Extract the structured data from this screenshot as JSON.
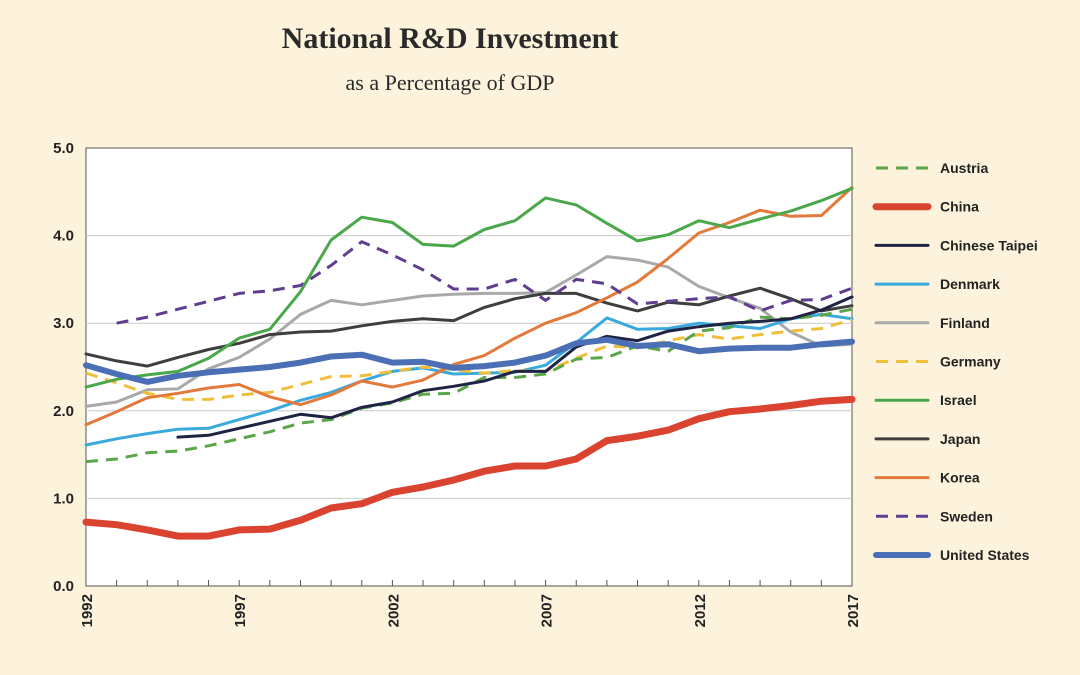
{
  "chart_data": {
    "type": "line",
    "title": "National R&D Investment",
    "subtitle": "as a Percentage of GDP",
    "xlabel": "",
    "ylabel": "",
    "xlim": [
      1992,
      2017
    ],
    "ylim": [
      0,
      5
    ],
    "x_ticks": [
      1992,
      1997,
      2002,
      2007,
      2012,
      2017
    ],
    "x_tick_labels": [
      "1992",
      "1997",
      "2002",
      "2007",
      "2012",
      "2017"
    ],
    "y_ticks": [
      0,
      1,
      2,
      3,
      4,
      5
    ],
    "y_tick_labels": [
      "0.0",
      "1.0",
      "2.0",
      "3.0",
      "4.0",
      "5.0"
    ],
    "grid": true,
    "legend_position": "right",
    "x": [
      1992,
      1993,
      1994,
      1995,
      1996,
      1997,
      1998,
      1999,
      2000,
      2001,
      2002,
      2003,
      2004,
      2005,
      2006,
      2007,
      2008,
      2009,
      2010,
      2011,
      2012,
      2013,
      2014,
      2015,
      2016,
      2017
    ],
    "series": [
      {
        "name": "Austria",
        "color": "#5aa648",
        "style": "dashed",
        "width": 3,
        "values": [
          1.42,
          1.45,
          1.52,
          1.54,
          1.6,
          1.68,
          1.76,
          1.86,
          1.9,
          2.03,
          2.09,
          2.19,
          2.2,
          2.38,
          2.38,
          2.42,
          2.59,
          2.61,
          2.74,
          2.68,
          2.91,
          2.95,
          3.07,
          3.05,
          3.09,
          3.16
        ]
      },
      {
        "name": "China",
        "color": "#d9432f",
        "style": "solid",
        "width": 7,
        "values": [
          0.73,
          0.7,
          0.64,
          0.57,
          0.57,
          0.64,
          0.65,
          0.75,
          0.89,
          0.94,
          1.07,
          1.13,
          1.21,
          1.31,
          1.37,
          1.37,
          1.45,
          1.66,
          1.71,
          1.78,
          1.91,
          1.99,
          2.02,
          2.06,
          2.11,
          2.13
        ]
      },
      {
        "name": "Chinese Taipei",
        "color": "#1f2344",
        "style": "solid",
        "width": 3,
        "values": [
          null,
          null,
          null,
          1.7,
          1.72,
          1.8,
          1.88,
          1.96,
          1.92,
          2.04,
          2.1,
          2.23,
          2.28,
          2.34,
          2.45,
          2.45,
          2.73,
          2.85,
          2.8,
          2.91,
          2.96,
          3.0,
          3.02,
          3.05,
          3.15,
          3.3
        ]
      },
      {
        "name": "Denmark",
        "color": "#3aa9dc",
        "style": "solid",
        "width": 3,
        "values": [
          1.61,
          1.68,
          1.74,
          1.79,
          1.8,
          1.9,
          2.0,
          2.12,
          2.21,
          2.34,
          2.45,
          2.49,
          2.42,
          2.43,
          2.44,
          2.52,
          2.78,
          3.06,
          2.93,
          2.94,
          3.0,
          2.97,
          2.94,
          3.05,
          3.1,
          3.05
        ]
      },
      {
        "name": "Finland",
        "color": "#a9a9a9",
        "style": "solid",
        "width": 3,
        "values": [
          2.05,
          2.1,
          2.24,
          2.25,
          2.48,
          2.61,
          2.82,
          3.1,
          3.26,
          3.21,
          3.26,
          3.31,
          3.33,
          3.34,
          3.34,
          3.35,
          3.55,
          3.76,
          3.72,
          3.64,
          3.42,
          3.29,
          3.17,
          2.9,
          2.74,
          2.76
        ]
      },
      {
        "name": "Germany",
        "color": "#efbf3c",
        "style": "dashed",
        "width": 3,
        "values": [
          2.43,
          2.32,
          2.2,
          2.13,
          2.13,
          2.18,
          2.21,
          2.3,
          2.39,
          2.4,
          2.45,
          2.5,
          2.47,
          2.43,
          2.46,
          2.45,
          2.6,
          2.74,
          2.72,
          2.8,
          2.87,
          2.82,
          2.87,
          2.91,
          2.94,
          3.04
        ]
      },
      {
        "name": "Israel",
        "color": "#4aa84a",
        "style": "solid",
        "width": 3,
        "values": [
          2.27,
          2.36,
          2.41,
          2.45,
          2.6,
          2.83,
          2.93,
          3.36,
          3.95,
          4.21,
          4.15,
          3.9,
          3.88,
          4.07,
          4.17,
          4.43,
          4.35,
          4.14,
          3.94,
          4.01,
          4.17,
          4.09,
          4.19,
          4.28,
          4.4,
          4.54
        ]
      },
      {
        "name": "Japan",
        "color": "#3e3e3e",
        "style": "solid",
        "width": 3,
        "values": [
          2.65,
          2.57,
          2.51,
          2.61,
          2.7,
          2.77,
          2.87,
          2.9,
          2.91,
          2.97,
          3.02,
          3.05,
          3.03,
          3.18,
          3.28,
          3.34,
          3.34,
          3.23,
          3.14,
          3.24,
          3.21,
          3.31,
          3.4,
          3.28,
          3.14,
          3.2
        ]
      },
      {
        "name": "Korea",
        "color": "#e3793a",
        "style": "solid",
        "width": 3,
        "values": [
          1.84,
          1.99,
          2.15,
          2.2,
          2.26,
          2.3,
          2.16,
          2.07,
          2.18,
          2.34,
          2.27,
          2.35,
          2.53,
          2.63,
          2.83,
          3.0,
          3.12,
          3.29,
          3.47,
          3.74,
          4.03,
          4.15,
          4.29,
          4.22,
          4.23,
          4.55
        ]
      },
      {
        "name": "Sweden",
        "color": "#5f3d8f",
        "style": "dashed",
        "width": 3,
        "values": [
          null,
          3.0,
          3.07,
          3.16,
          3.25,
          3.34,
          3.37,
          3.43,
          3.66,
          3.93,
          3.78,
          3.61,
          3.39,
          3.39,
          3.5,
          3.26,
          3.5,
          3.45,
          3.22,
          3.25,
          3.28,
          3.3,
          3.14,
          3.26,
          3.27,
          3.4
        ]
      },
      {
        "name": "United States",
        "color": "#4a6fb5",
        "style": "solid",
        "width": 6,
        "values": [
          2.52,
          2.42,
          2.33,
          2.4,
          2.44,
          2.47,
          2.5,
          2.55,
          2.62,
          2.64,
          2.55,
          2.56,
          2.49,
          2.51,
          2.55,
          2.63,
          2.77,
          2.81,
          2.74,
          2.76,
          2.68,
          2.71,
          2.72,
          2.72,
          2.76,
          2.79
        ]
      }
    ]
  }
}
